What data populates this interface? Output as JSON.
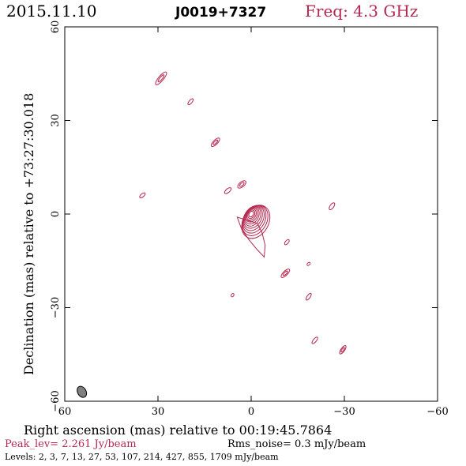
{
  "header": {
    "date": "2015.11.10",
    "source": "J0019+7327",
    "frequency": "Freq: 4.3 GHz"
  },
  "footer": {
    "peak": "Peak_lev=  2.261 Jy/beam",
    "rms": "Rms_noise=  0.3 mJy/beam",
    "levels": "Levels:   2,   3,   7,   13,   27,   53,  107,  214,  427,  855,  1709 mJy/beam"
  },
  "colors": {
    "contour": "#b5284f",
    "axis": "#000000",
    "beam_fill": "#808080"
  },
  "chart_data": {
    "type": "contour",
    "xlabel": "Right ascension (mas) relative to 00:19:45.7864",
    "ylabel": "Declination (mas) relative to +73:27:30.018",
    "xlim": [
      60,
      -60
    ],
    "ylim": [
      -60,
      60
    ],
    "x_ticks": [
      60,
      30,
      0,
      -30,
      -60
    ],
    "y_ticks": [
      -60,
      -30,
      0,
      30,
      60
    ],
    "x_tick_labels": [
      "60",
      "30",
      "0",
      "−30",
      "−60"
    ],
    "y_tick_labels": [
      "−60",
      "−30",
      "0",
      "30",
      "60"
    ],
    "levels_mJy": [
      2,
      3,
      7,
      13,
      27,
      53,
      107,
      214,
      427,
      855,
      1709
    ],
    "peak_Jy_per_beam": 2.261,
    "rms_mJy_per_beam": 0.3,
    "core": {
      "ra": 0,
      "dec": 0,
      "levels_shown": 11
    },
    "components": [
      {
        "ra": 29.0,
        "dec": 43.5,
        "a": 2.6,
        "b": 0.8,
        "pa": -50
      },
      {
        "ra": 19.5,
        "dec": 36.0,
        "a": 1.2,
        "b": 0.5,
        "pa": -50
      },
      {
        "ra": 11.5,
        "dec": 23.0,
        "a": 1.8,
        "b": 0.7,
        "pa": -45
      },
      {
        "ra": 3.0,
        "dec": 9.5,
        "a": 1.6,
        "b": 0.8,
        "pa": -40
      },
      {
        "ra": 7.5,
        "dec": 7.5,
        "a": 1.3,
        "b": 0.6,
        "pa": -40
      },
      {
        "ra": 35.0,
        "dec": 6.0,
        "a": 1.1,
        "b": 0.5,
        "pa": -40
      },
      {
        "ra": -26.0,
        "dec": 2.5,
        "a": 1.3,
        "b": 0.6,
        "pa": -55
      },
      {
        "ra": -11.5,
        "dec": -9.0,
        "a": 1.0,
        "b": 0.5,
        "pa": -50
      },
      {
        "ra": -11.0,
        "dec": -19.0,
        "a": 1.8,
        "b": 0.7,
        "pa": -45
      },
      {
        "ra": -18.5,
        "dec": -16.0,
        "a": 0.6,
        "b": 0.4,
        "pa": -45
      },
      {
        "ra": 6.0,
        "dec": -26.0,
        "a": 0.6,
        "b": 0.4,
        "pa": -60
      },
      {
        "ra": -18.5,
        "dec": -26.5,
        "a": 1.3,
        "b": 0.5,
        "pa": -55
      },
      {
        "ra": -20.5,
        "dec": -40.5,
        "a": 1.3,
        "b": 0.5,
        "pa": -50
      },
      {
        "ra": -29.5,
        "dec": -43.5,
        "a": 1.6,
        "b": 0.6,
        "pa": -55
      }
    ],
    "beam": {
      "ra": 54.5,
      "dec": -57.0,
      "major": 3.8,
      "minor": 2.7,
      "pa": 60
    }
  }
}
